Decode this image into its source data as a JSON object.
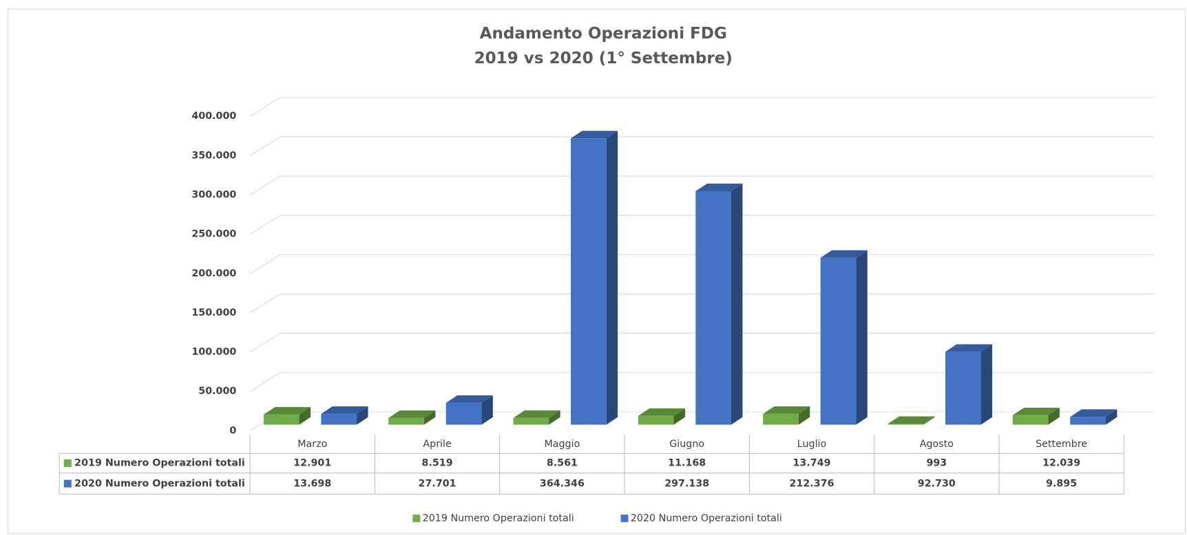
{
  "chart_data": {
    "type": "bar3d",
    "title": "Andamento Operazioni FDG",
    "subtitle": "2019 vs 2020 (1° Settembre)",
    "categories": [
      "Marzo",
      "Aprile",
      "Maggio",
      "Giugno",
      "Luglio",
      "Agosto",
      "Settembre"
    ],
    "series": [
      {
        "name": "2019 Numero Operazioni totali",
        "color": "#70ad47",
        "values": [
          12901,
          8519,
          8561,
          11168,
          13749,
          993,
          12039
        ],
        "value_labels": [
          "12.901",
          "8.519",
          "8.561",
          "11.168",
          "13.749",
          "993",
          "12.039"
        ]
      },
      {
        "name": "2020 Numero Operazioni totali",
        "color": "#4472c4",
        "values": [
          13698,
          27701,
          364346,
          297138,
          212376,
          92730,
          9895
        ],
        "value_labels": [
          "13.698",
          "27.701",
          "364.346",
          "297.138",
          "212.376",
          "92.730",
          "9.895"
        ]
      }
    ],
    "ylim": [
      0,
      400000
    ],
    "yticks": [
      0,
      {
        "value": 50000,
        "label": "50.000"
      },
      {
        "value": 100000,
        "label": "100.000"
      },
      {
        "value": 150000,
        "label": "150.000"
      },
      {
        "value": 200000,
        "label": "200.000"
      },
      {
        "value": 250000,
        "label": "250.000"
      },
      {
        "value": 300000,
        "label": "300.000"
      },
      {
        "value": 350000,
        "label": "350.000"
      },
      {
        "value": 400000,
        "label": "400.000"
      }
    ],
    "grid": true,
    "legend": "bottom",
    "data_table": true
  }
}
